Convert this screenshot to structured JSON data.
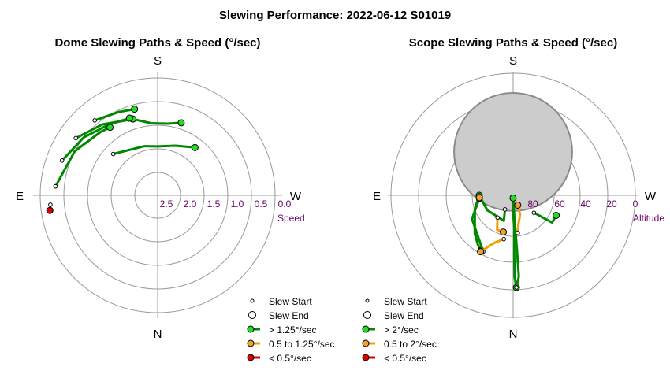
{
  "title": "Slewing Performance: 2022-06-12 S01019",
  "colors": {
    "fast": "#008800",
    "medium": "#f0a000",
    "slow": "#dd0000",
    "fast_marker": "#22dd22",
    "medium_marker": "#f0a030",
    "slow_marker": "#dd0000",
    "tick_text": "#660066"
  },
  "chart_data": [
    {
      "type": "polar-paths",
      "title": "Dome Slewing Paths & Speed (°/sec)",
      "directions": {
        "top": "S",
        "bottom": "N",
        "left": "E",
        "right": "W"
      },
      "radial_axis_label": "Speed",
      "radial_ticks": [
        "2.5",
        "2.0",
        "1.5",
        "1.0",
        "0.5",
        "0.0"
      ],
      "radial_tick_values": [
        2.5,
        2.0,
        1.5,
        1.0,
        0.5,
        0.0
      ],
      "radial_range": [
        3.0,
        0.0
      ],
      "legend": [
        {
          "marker": "start",
          "label": "Slew Start"
        },
        {
          "marker": "end",
          "label": "Slew End"
        },
        {
          "marker": "fast",
          "label": "> 1.25°/sec"
        },
        {
          "marker": "medium",
          "label": "0.5 to 1.25°/sec"
        },
        {
          "marker": "slow",
          "label": "< 0.5°/sec"
        }
      ],
      "slews": [
        {
          "class": "fast",
          "points": [
            [
              -47,
              1.45
            ],
            [
              -15,
              1.7
            ],
            [
              0,
              1.75
            ],
            [
              20,
              1.65
            ],
            [
              38,
              1.45
            ]
          ]
        },
        {
          "class": "fast",
          "points": [
            [
              -18,
              0.95
            ],
            [
              -5,
              1.15
            ],
            [
              8,
              1.15
            ],
            [
              18,
              1.05
            ]
          ]
        },
        {
          "class": "fast",
          "points": [
            [
              -40,
              0.5
            ],
            [
              -25,
              0.65
            ],
            [
              -15,
              0.72
            ]
          ]
        },
        {
          "class": "fast",
          "points": [
            [
              -55,
              0.45
            ],
            [
              -38,
              0.7
            ],
            [
              -25,
              0.9
            ],
            [
              -18,
              0.95
            ]
          ]
        },
        {
          "class": "fast",
          "points": [
            [
              -70,
              0.4
            ],
            [
              -52,
              0.6
            ],
            [
              -35,
              0.8
            ],
            [
              -20,
              0.9
            ]
          ]
        },
        {
          "class": "fast",
          "points": [
            [
              -85,
              0.38
            ],
            [
              -62,
              0.6
            ],
            [
              -42,
              0.82
            ],
            [
              -35,
              0.88
            ]
          ]
        },
        {
          "class": "slow",
          "points": [
            [
              -95,
              0.25
            ],
            [
              -98,
              0.22
            ]
          ]
        }
      ]
    },
    {
      "type": "polar-paths",
      "title": "Scope Slewing Paths & Speed (°/sec)",
      "directions": {
        "top": "S",
        "bottom": "N",
        "left": "E",
        "right": "W"
      },
      "radial_axis_label": "Altitude",
      "radial_ticks": [
        "80",
        "60",
        "40",
        "20",
        "0"
      ],
      "radial_tick_values": [
        80,
        60,
        40,
        20,
        0
      ],
      "radial_range": [
        90,
        0
      ],
      "shaded_region": {
        "azimuth": 0,
        "altitude": 58,
        "radius_deg": 15
      },
      "legend": [
        {
          "marker": "start",
          "label": "Slew Start"
        },
        {
          "marker": "end",
          "label": "Slew End"
        },
        {
          "marker": "fast",
          "label": "> 2°/sec"
        },
        {
          "marker": "medium",
          "label": "0.5 to 2°/sec"
        },
        {
          "marker": "slow",
          "label": "< 0.5°/sec"
        }
      ],
      "slews": [
        {
          "class": "fast",
          "points": [
            [
              -175,
              88
            ],
            [
              -179,
              80
            ],
            [
              178,
              65
            ],
            [
              179,
              45
            ],
            [
              179,
              30
            ],
            [
              178,
              22
            ]
          ]
        },
        {
          "class": "fast",
          "points": [
            [
              178,
              22
            ],
            [
              176,
              30
            ],
            [
              176,
              50
            ],
            [
              177,
              75
            ],
            [
              -178,
              88
            ]
          ]
        },
        {
          "class": "fast",
          "points": [
            [
              -150,
              78
            ],
            [
              -160,
              70
            ],
            [
              -120,
              68
            ],
            [
              -90,
              65
            ]
          ]
        },
        {
          "class": "fast",
          "points": [
            [
              -90,
              65
            ],
            [
              -110,
              60
            ],
            [
              -135,
              50
            ],
            [
              -145,
              45
            ],
            [
              -150,
              43
            ]
          ]
        },
        {
          "class": "fast",
          "points": [
            [
              -152,
              43
            ],
            [
              -120,
              55
            ],
            [
              -95,
              65
            ]
          ]
        },
        {
          "class": "fast",
          "points": [
            [
              130,
              70
            ],
            [
              125,
              55
            ],
            [
              115,
              55
            ]
          ]
        },
        {
          "class": "medium",
          "points": [
            [
              -168,
              57
            ],
            [
              -158,
              52
            ],
            [
              -150,
              42
            ]
          ]
        },
        {
          "class": "medium",
          "points": [
            [
              -145,
              70
            ],
            [
              -155,
              62
            ],
            [
              -165,
              62
            ]
          ]
        },
        {
          "class": "medium",
          "points": [
            [
              173,
              62
            ],
            [
              170,
              68
            ],
            [
              160,
              75
            ],
            [
              155,
              82
            ]
          ]
        },
        {
          "class": "medium",
          "points": [
            [
              -93,
              66
            ],
            [
              -94,
              65
            ]
          ]
        }
      ]
    }
  ]
}
